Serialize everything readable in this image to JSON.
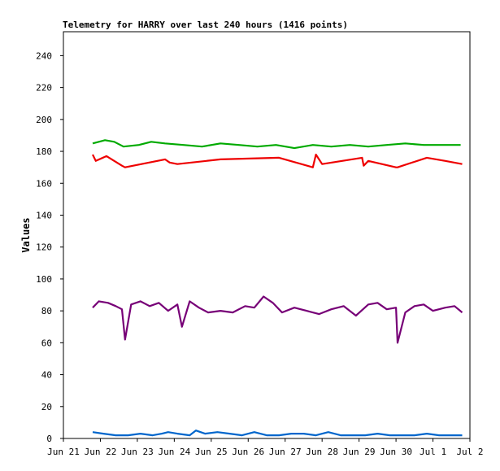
{
  "chart_data": {
    "type": "line",
    "title": "Telemetry for HARRY over last 240 hours (1416 points)",
    "xlabel": "",
    "ylabel": "Values",
    "ylim": [
      0,
      255
    ],
    "xlim": [
      "2020-06-21",
      "2020-07-02"
    ],
    "y_ticks": [
      0,
      20,
      40,
      60,
      80,
      100,
      120,
      140,
      160,
      180,
      200,
      220,
      240
    ],
    "x_ticks": [
      "Jun 21",
      "Jun 22",
      "Jun 23",
      "Jun 24",
      "Jun 25",
      "Jun 26",
      "Jun 27",
      "Jun 28",
      "Jun 29",
      "Jun 30",
      "Jul 1",
      "Jul 2"
    ],
    "grid": false,
    "legend": "none",
    "series": [
      {
        "color": "#00aa00",
        "x": [
          "2020-06-21T19:00",
          "2020-06-22T03:00",
          "2020-06-22T09:00",
          "2020-06-22T15:00",
          "2020-06-23T01:00",
          "2020-06-23T09:00",
          "2020-06-23T18:00",
          "2020-06-24T06:00",
          "2020-06-24T18:00",
          "2020-06-25T06:00",
          "2020-06-25T18:00",
          "2020-06-26T06:00",
          "2020-06-26T18:00",
          "2020-06-27T06:00",
          "2020-06-27T18:00",
          "2020-06-28T06:00",
          "2020-06-28T18:00",
          "2020-06-29T06:00",
          "2020-06-29T18:00",
          "2020-06-30T06:00",
          "2020-06-30T18:00",
          "2020-07-01T06:00",
          "2020-07-01T18:00"
        ],
        "values": [
          185,
          187,
          186,
          183,
          184,
          186,
          185,
          184,
          183,
          185,
          184,
          183,
          184,
          182,
          184,
          183,
          184,
          183,
          184,
          185,
          184,
          184,
          184
        ]
      },
      {
        "color": "#ee0000",
        "x": [
          "2020-06-21T19:00",
          "2020-06-21T21:00",
          "2020-06-22T04:00",
          "2020-06-22T14:00",
          "2020-06-22T16:00",
          "2020-06-23T18:00",
          "2020-06-23T21:00",
          "2020-06-24T02:00",
          "2020-06-25T06:00",
          "2020-06-26T20:00",
          "2020-06-27T18:00",
          "2020-06-27T20:00",
          "2020-06-28T00:00",
          "2020-06-29T02:00",
          "2020-06-29T03:00",
          "2020-06-29T06:00",
          "2020-06-30T00:00",
          "2020-06-30T01:00",
          "2020-06-30T20:00",
          "2020-07-01T08:00",
          "2020-07-01T19:00"
        ],
        "values": [
          178,
          174,
          177,
          171,
          170,
          175,
          173,
          172,
          175,
          176,
          170,
          178,
          172,
          176,
          171,
          174,
          170,
          170,
          176,
          174,
          172
        ]
      },
      {
        "color": "#770077",
        "x": [
          "2020-06-21T19:00",
          "2020-06-21T23:00",
          "2020-06-22T05:00",
          "2020-06-22T10:00",
          "2020-06-22T14:00",
          "2020-06-22T16:00",
          "2020-06-22T20:00",
          "2020-06-23T02:00",
          "2020-06-23T08:00",
          "2020-06-23T14:00",
          "2020-06-23T20:00",
          "2020-06-24T02:00",
          "2020-06-24T05:00",
          "2020-06-24T10:00",
          "2020-06-24T16:00",
          "2020-06-24T22:00",
          "2020-06-25T06:00",
          "2020-06-25T14:00",
          "2020-06-25T22:00",
          "2020-06-26T04:00",
          "2020-06-26T10:00",
          "2020-06-26T16:00",
          "2020-06-26T22:00",
          "2020-06-27T06:00",
          "2020-06-27T14:00",
          "2020-06-27T22:00",
          "2020-06-28T06:00",
          "2020-06-28T14:00",
          "2020-06-28T22:00",
          "2020-06-29T06:00",
          "2020-06-29T12:00",
          "2020-06-29T18:00",
          "2020-06-30T00:00",
          "2020-06-30T01:00",
          "2020-06-30T06:00",
          "2020-06-30T12:00",
          "2020-06-30T18:00",
          "2020-07-01T00:00",
          "2020-07-01T08:00",
          "2020-07-01T14:00",
          "2020-07-01T19:00"
        ],
        "values": [
          82,
          86,
          85,
          83,
          81,
          62,
          84,
          86,
          83,
          85,
          80,
          84,
          70,
          86,
          82,
          79,
          80,
          79,
          83,
          82,
          89,
          85,
          79,
          82,
          80,
          78,
          81,
          83,
          77,
          84,
          85,
          81,
          82,
          60,
          79,
          83,
          84,
          80,
          82,
          83,
          79
        ]
      },
      {
        "color": "#0066cc",
        "x": [
          "2020-06-21T19:00",
          "2020-06-22T02:00",
          "2020-06-22T10:00",
          "2020-06-22T18:00",
          "2020-06-23T02:00",
          "2020-06-23T10:00",
          "2020-06-23T16:00",
          "2020-06-23T20:00",
          "2020-06-24T02:00",
          "2020-06-24T10:00",
          "2020-06-24T14:00",
          "2020-06-24T20:00",
          "2020-06-25T04:00",
          "2020-06-25T12:00",
          "2020-06-25T20:00",
          "2020-06-26T04:00",
          "2020-06-26T12:00",
          "2020-06-26T20:00",
          "2020-06-27T04:00",
          "2020-06-27T12:00",
          "2020-06-27T20:00",
          "2020-06-28T04:00",
          "2020-06-28T12:00",
          "2020-06-28T20:00",
          "2020-06-29T04:00",
          "2020-06-29T12:00",
          "2020-06-29T20:00",
          "2020-06-30T04:00",
          "2020-06-30T12:00",
          "2020-06-30T20:00",
          "2020-07-01T04:00",
          "2020-07-01T12:00",
          "2020-07-01T19:00"
        ],
        "values": [
          4,
          3,
          2,
          2,
          3,
          2,
          3,
          4,
          3,
          2,
          5,
          3,
          4,
          3,
          2,
          4,
          2,
          2,
          3,
          3,
          2,
          4,
          2,
          2,
          2,
          3,
          2,
          2,
          2,
          3,
          2,
          2,
          2
        ]
      }
    ]
  }
}
